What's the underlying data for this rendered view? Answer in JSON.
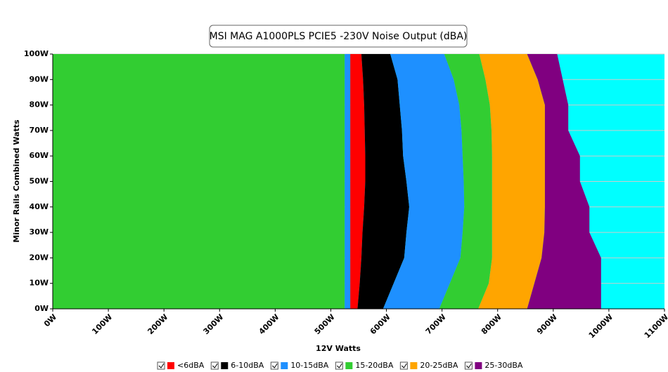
{
  "chart_data": {
    "type": "region",
    "title": "MSI MAG A1000PLS PCIE5 -230V Noise Output (dBA)",
    "x_label": "12V Watts",
    "y_label": "Minor Rails Combined Watts",
    "background": "#00ffff",
    "xlim": [
      0,
      1100
    ],
    "ylim": [
      0,
      100
    ],
    "xticks": [
      {
        "value": 0,
        "label": "0W"
      },
      {
        "value": 100,
        "label": "100W"
      },
      {
        "value": 200,
        "label": "200W"
      },
      {
        "value": 300,
        "label": "300W"
      },
      {
        "value": 400,
        "label": "400W"
      },
      {
        "value": 500,
        "label": "500W"
      },
      {
        "value": 600,
        "label": "600W"
      },
      {
        "value": 700,
        "label": "700W"
      },
      {
        "value": 800,
        "label": "800W"
      },
      {
        "value": 900,
        "label": "900W"
      },
      {
        "value": 1000,
        "label": "1000W"
      },
      {
        "value": 1100,
        "label": "1100W"
      }
    ],
    "yticks": [
      {
        "value": 0,
        "label": "0W"
      },
      {
        "value": 10,
        "label": "10W"
      },
      {
        "value": 20,
        "label": "20W"
      },
      {
        "value": 30,
        "label": "30W"
      },
      {
        "value": 40,
        "label": "40W"
      },
      {
        "value": 50,
        "label": "50W"
      },
      {
        "value": 60,
        "label": "60W"
      },
      {
        "value": 70,
        "label": "70W"
      },
      {
        "value": 80,
        "label": "80W"
      },
      {
        "value": 90,
        "label": "90W"
      },
      {
        "value": 100,
        "label": "100W"
      }
    ],
    "grid": true,
    "series": [
      {
        "name": "<6dBA",
        "color": "#ff0000"
      },
      {
        "name": "6-10dBA",
        "color": "#000000"
      },
      {
        "name": "10-15dBA",
        "color": "#1e90ff"
      },
      {
        "name": "15-20dBA",
        "color": "#32cd32"
      },
      {
        "name": "20-25dBA",
        "color": "#ffa500"
      },
      {
        "name": "25-30dBA",
        "color": "#800080"
      }
    ],
    "y": [
      0,
      10,
      20,
      30,
      40,
      50,
      60,
      70,
      80,
      90,
      100
    ],
    "regions": [
      {
        "color": "#32cd32",
        "right": [
          525,
          525,
          525,
          525,
          525,
          525,
          525,
          525,
          525,
          525,
          525
        ]
      },
      {
        "color": "#1e90ff",
        "right": [
          535,
          535,
          535,
          535,
          535,
          535,
          535,
          535,
          535,
          535,
          535
        ]
      },
      {
        "color": "#ff0000",
        "right": [
          548,
          552,
          555,
          557,
          560,
          562,
          562,
          561,
          560,
          558,
          555
        ]
      },
      {
        "color": "#000000",
        "right": [
          594,
          613,
          632,
          636,
          641,
          636,
          630,
          628,
          624,
          620,
          607
        ]
      },
      {
        "color": "#1e90ff",
        "right": [
          695,
          714,
          733,
          737,
          740,
          739,
          737,
          735,
          731,
          721,
          704
        ]
      },
      {
        "color": "#32cd32",
        "right": [
          765,
          784,
          790,
          790,
          790,
          790,
          790,
          789,
          786,
          778,
          767
        ]
      },
      {
        "color": "#ffa500",
        "right": [
          853,
          866,
          879,
          884,
          885,
          885,
          885,
          885,
          885,
          872,
          853
        ]
      },
      {
        "color": "#800080",
        "right": [
          986,
          986,
          986,
          965,
          965,
          948,
          948,
          927,
          927,
          917,
          907
        ]
      }
    ]
  }
}
